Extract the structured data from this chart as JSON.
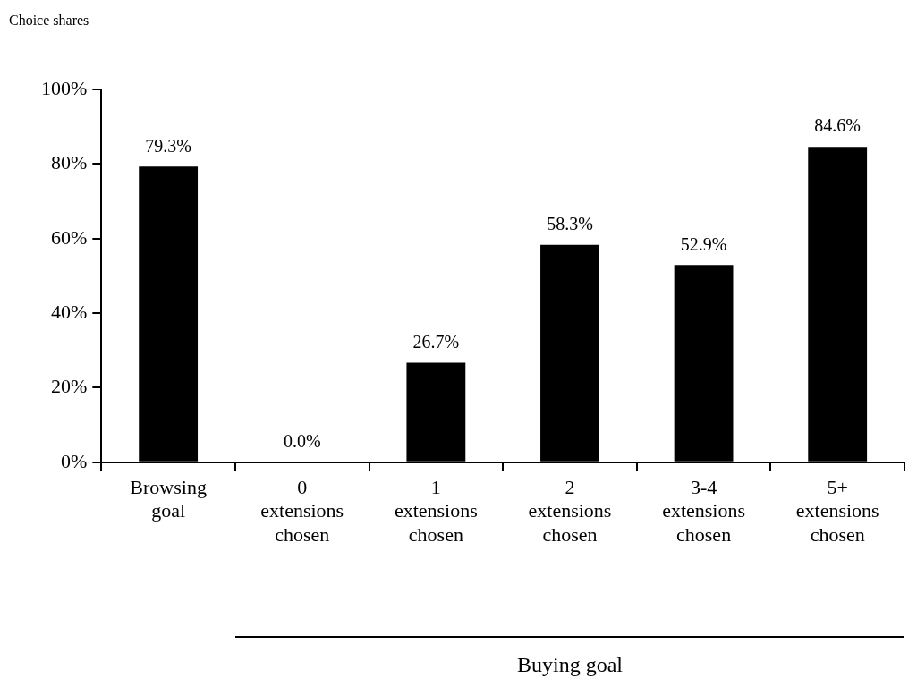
{
  "chart_data": {
    "type": "bar",
    "ylabel": "Choice shares",
    "categories": [
      "Browsing goal",
      "0 extensions chosen",
      "1 extensions chosen",
      "2 extensions chosen",
      "3-4 extensions chosen",
      "5+ extensions chosen"
    ],
    "values": [
      79.3,
      0.0,
      26.7,
      58.3,
      52.9,
      84.6
    ],
    "value_labels": [
      "79.3%",
      "0.0%",
      "26.7%",
      "58.3%",
      "52.9%",
      "84.6%"
    ],
    "color": "#000000",
    "ylim": [
      0,
      100
    ],
    "yticks": [
      {
        "value": 0,
        "label": "0%"
      },
      {
        "value": 20,
        "label": "20%"
      },
      {
        "value": 40,
        "label": "40%"
      },
      {
        "value": 60,
        "label": "60%"
      },
      {
        "value": 80,
        "label": "80%"
      },
      {
        "value": 100,
        "label": "100%"
      }
    ],
    "annotations": [
      "Buying goal"
    ],
    "grid": false,
    "legend": false
  }
}
